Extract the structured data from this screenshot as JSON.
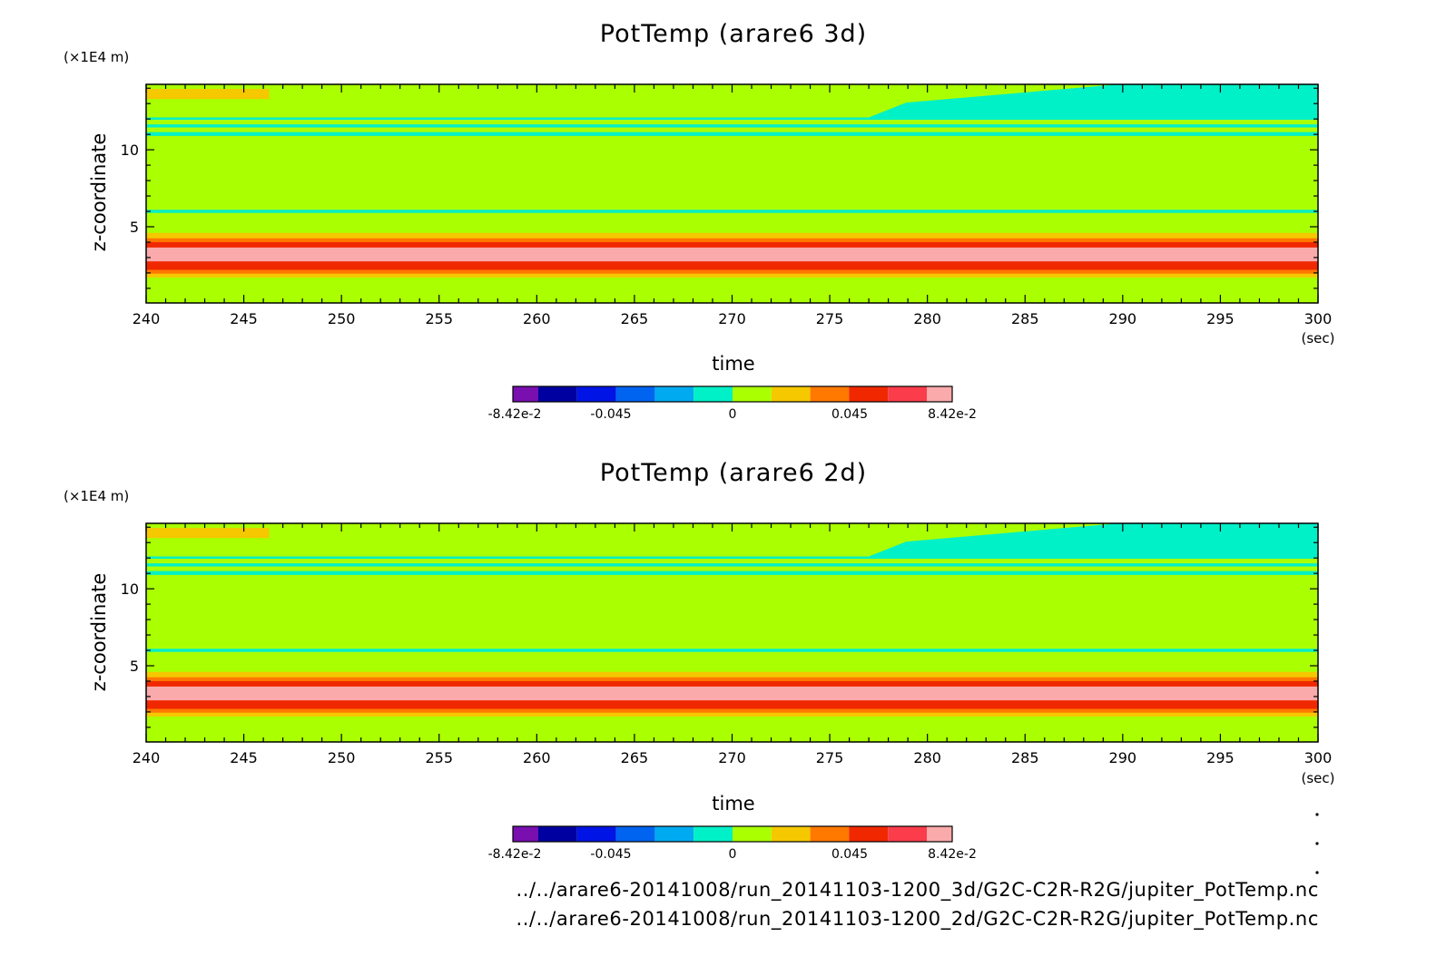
{
  "chart_data": [
    {
      "type": "heatmap",
      "title": "PotTemp (arare6 3d)",
      "xlabel": "time",
      "x_unit": "(sec)",
      "ylabel": "z-coordinate",
      "y_unit": "(×1E4 m)",
      "xlim": [
        240,
        300
      ],
      "ylim": [
        0.05,
        14.25
      ],
      "x_ticks": [
        240,
        245,
        250,
        255,
        260,
        265,
        270,
        275,
        280,
        285,
        290,
        295,
        300
      ],
      "y_ticks": [
        5,
        10
      ],
      "grid": false,
      "colorbar": {
        "range": [
          -0.0842,
          0.0842
        ],
        "tick_labels": [
          "-8.42e-2",
          "-0.045",
          "0",
          "0.045",
          "8.42e-2"
        ],
        "colors": [
          "#7a0fb0",
          "#0000a0",
          "#0014e6",
          "#0064f0",
          "#00aaf0",
          "#00f0c8",
          "#aaff00",
          "#f5c800",
          "#ff7800",
          "#f02800",
          "#fa3c4b",
          "#faaaaa"
        ]
      },
      "regions": [
        {
          "color": "#aaff00",
          "t_start": 240,
          "t_end": 300,
          "z_bottom": 0.05,
          "z_top": 14.25
        },
        {
          "color": "#f5c800",
          "t_start": 240,
          "t_end": 246.3,
          "z_bottom": 13.3,
          "z_top": 13.95
        },
        {
          "color": "#00f0c8",
          "t_start": 277,
          "t_end": 300,
          "z_bottom": 12.1,
          "z_top": 14.25,
          "t_start_top": 289.8
        },
        {
          "color": "#00f0c8",
          "t_start": 240,
          "t_end": 300,
          "z_bottom": 11.95,
          "z_top": 12.1
        },
        {
          "color": "#00f0c8",
          "t_start": 240,
          "t_end": 300,
          "z_bottom": 11.45,
          "z_top": 11.65
        },
        {
          "color": "#00f0c8",
          "t_start": 240,
          "t_end": 300,
          "z_bottom": 10.9,
          "z_top": 11.15
        },
        {
          "color": "#00f0c8",
          "t_start": 240,
          "t_end": 300,
          "z_bottom": 5.9,
          "z_top": 6.1
        },
        {
          "color": "#f5c800",
          "t_start": 240,
          "t_end": 300,
          "z_bottom": 1.7,
          "z_top": 4.6
        },
        {
          "color": "#ff7800",
          "t_start": 240,
          "t_end": 300,
          "z_bottom": 1.95,
          "z_top": 4.25
        },
        {
          "color": "#f02800",
          "t_start": 240,
          "t_end": 300,
          "z_bottom": 2.2,
          "z_top": 4.0
        },
        {
          "color": "#faaaaa",
          "t_start": 240,
          "t_end": 300,
          "z_bottom": 2.75,
          "z_top": 3.65
        }
      ]
    },
    {
      "type": "heatmap",
      "title": "PotTemp (arare6 2d)",
      "xlabel": "time",
      "x_unit": "(sec)",
      "ylabel": "z-coordinate",
      "y_unit": "(×1E4 m)",
      "xlim": [
        240,
        300
      ],
      "ylim": [
        0.05,
        14.25
      ],
      "x_ticks": [
        240,
        245,
        250,
        255,
        260,
        265,
        270,
        275,
        280,
        285,
        290,
        295,
        300
      ],
      "y_ticks": [
        5,
        10
      ],
      "grid": false,
      "colorbar": {
        "range": [
          -0.0842,
          0.0842
        ],
        "tick_labels": [
          "-8.42e-2",
          "-0.045",
          "0",
          "0.045",
          "8.42e-2"
        ],
        "colors": [
          "#7a0fb0",
          "#0000a0",
          "#0014e6",
          "#0064f0",
          "#00aaf0",
          "#00f0c8",
          "#aaff00",
          "#f5c800",
          "#ff7800",
          "#f02800",
          "#fa3c4b",
          "#faaaaa"
        ]
      },
      "regions": [
        {
          "color": "#aaff00",
          "t_start": 240,
          "t_end": 300,
          "z_bottom": 0.05,
          "z_top": 14.25
        },
        {
          "color": "#f5c800",
          "t_start": 240,
          "t_end": 246.3,
          "z_bottom": 13.3,
          "z_top": 13.95
        },
        {
          "color": "#00f0c8",
          "t_start": 277,
          "t_end": 300,
          "z_bottom": 12.1,
          "z_top": 14.25,
          "t_start_top": 289.8
        },
        {
          "color": "#00f0c8",
          "t_start": 240,
          "t_end": 300,
          "z_bottom": 11.95,
          "z_top": 12.1
        },
        {
          "color": "#00f0c8",
          "t_start": 240,
          "t_end": 300,
          "z_bottom": 11.45,
          "z_top": 11.65
        },
        {
          "color": "#00f0c8",
          "t_start": 240,
          "t_end": 300,
          "z_bottom": 10.9,
          "z_top": 11.15
        },
        {
          "color": "#00f0c8",
          "t_start": 240,
          "t_end": 300,
          "z_bottom": 5.9,
          "z_top": 6.1
        },
        {
          "color": "#f5c800",
          "t_start": 240,
          "t_end": 300,
          "z_bottom": 1.7,
          "z_top": 4.6
        },
        {
          "color": "#ff7800",
          "t_start": 240,
          "t_end": 300,
          "z_bottom": 1.95,
          "z_top": 4.25
        },
        {
          "color": "#f02800",
          "t_start": 240,
          "t_end": 300,
          "z_bottom": 2.2,
          "z_top": 4.0
        },
        {
          "color": "#faaaaa",
          "t_start": 240,
          "t_end": 300,
          "z_bottom": 2.75,
          "z_top": 3.65
        }
      ]
    }
  ],
  "file_paths": [
    "../../arare6-20141008/run_20141103-1200_3d/G2C-C2R-R2G/jupiter_PotTemp.nc",
    "../../arare6-20141008/run_20141103-1200_2d/G2C-C2R-R2G/jupiter_PotTemp.nc"
  ]
}
